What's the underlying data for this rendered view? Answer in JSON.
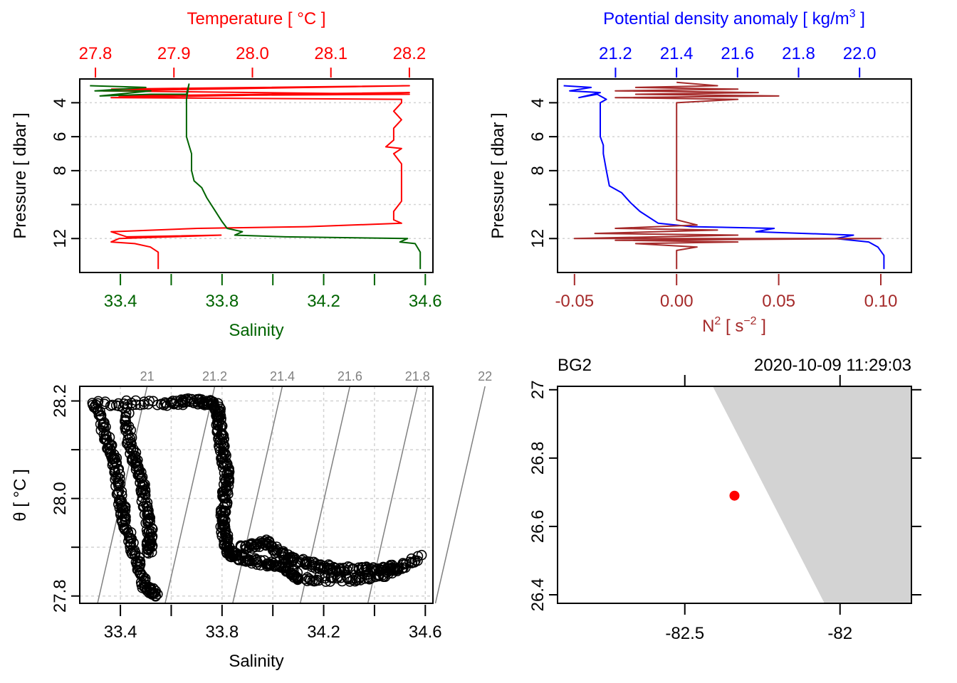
{
  "colors": {
    "temperature": "#ff0000",
    "salinity": "#006400",
    "density": "#0000ff",
    "n2": "#a52a2a",
    "grid": "#d3d3d3",
    "isopycnal": "#808080",
    "land": "#d3d3d3",
    "station": "#ff0000",
    "frame": "#000000"
  },
  "chart_data": [
    {
      "id": "temperature-salinity-profile",
      "type": "line",
      "title": "",
      "ylabel": "Pressure [ dbar ]",
      "ylim": [
        14.0,
        2.6
      ],
      "yticks": [
        4,
        6,
        8,
        10,
        12
      ],
      "ytick_labels": [
        "4",
        "6",
        "8",
        "",
        "12"
      ],
      "grid": "horizontal dotted",
      "axes": {
        "top": {
          "label": "Temperature [ °C ]",
          "ticks": [
            27.8,
            27.9,
            28.0,
            28.1,
            28.2
          ],
          "tick_labels": [
            "27.8",
            "27.9",
            "28.0",
            "28.1",
            "28.2"
          ],
          "lim": [
            27.78,
            28.23
          ]
        },
        "bottom": {
          "label": "Salinity",
          "ticks": [
            33.4,
            33.6,
            33.8,
            34.0,
            34.2,
            34.4,
            34.6
          ],
          "tick_labels": [
            "33.4",
            "",
            "33.8",
            "",
            "34.2",
            "",
            "34.6"
          ],
          "lim": [
            33.24,
            34.63
          ]
        }
      },
      "series": [
        {
          "name": "Temperature",
          "axis": "top",
          "points": [
            [
              27.82,
              3.2
            ],
            [
              28.2,
              3.0
            ],
            [
              27.81,
              3.3
            ],
            [
              28.2,
              3.5
            ],
            [
              27.83,
              3.6
            ],
            [
              28.2,
              3.4
            ],
            [
              27.82,
              3.7
            ],
            [
              28.19,
              3.8
            ],
            [
              28.19,
              4.0
            ],
            [
              28.18,
              4.5
            ],
            [
              28.19,
              5.0
            ],
            [
              28.18,
              5.5
            ],
            [
              28.18,
              6.2
            ],
            [
              28.17,
              6.6
            ],
            [
              28.19,
              6.7
            ],
            [
              28.18,
              7.0
            ],
            [
              28.19,
              7.6
            ],
            [
              28.19,
              8.5
            ],
            [
              28.19,
              9.2
            ],
            [
              28.19,
              9.8
            ],
            [
              28.18,
              10.4
            ],
            [
              28.18,
              10.9
            ],
            [
              28.19,
              11.1
            ],
            [
              28.07,
              11.3
            ],
            [
              27.93,
              11.4
            ],
            [
              27.82,
              11.6
            ],
            [
              27.84,
              11.9
            ],
            [
              27.96,
              11.8
            ],
            [
              27.83,
              12.0
            ],
            [
              27.82,
              12.2
            ],
            [
              27.85,
              12.3
            ],
            [
              27.87,
              12.5
            ],
            [
              27.88,
              12.8
            ],
            [
              27.88,
              13.2
            ],
            [
              27.88,
              13.6
            ],
            [
              27.88,
              13.8
            ]
          ]
        },
        {
          "name": "Salinity",
          "axis": "bottom",
          "points": [
            [
              33.28,
              3.0
            ],
            [
              33.5,
              3.1
            ],
            [
              33.3,
              3.3
            ],
            [
              33.52,
              3.3
            ],
            [
              33.32,
              3.6
            ],
            [
              33.52,
              3.5
            ],
            [
              33.66,
              3.5
            ],
            [
              33.67,
              2.9
            ],
            [
              33.66,
              3.8
            ],
            [
              33.66,
              4.0
            ],
            [
              33.66,
              5.0
            ],
            [
              33.66,
              6.0
            ],
            [
              33.67,
              6.5
            ],
            [
              33.68,
              7.0
            ],
            [
              33.68,
              8.0
            ],
            [
              33.69,
              8.6
            ],
            [
              33.72,
              9.0
            ],
            [
              33.74,
              9.6
            ],
            [
              33.77,
              10.3
            ],
            [
              33.8,
              11.0
            ],
            [
              33.82,
              11.4
            ],
            [
              33.88,
              11.6
            ],
            [
              33.85,
              11.8
            ],
            [
              34.05,
              11.9
            ],
            [
              34.53,
              12.0
            ],
            [
              34.5,
              12.2
            ],
            [
              34.56,
              12.3
            ],
            [
              34.58,
              12.8
            ],
            [
              34.58,
              13.5
            ],
            [
              34.58,
              13.8
            ]
          ]
        }
      ]
    },
    {
      "id": "density-n2-profile",
      "type": "line",
      "title": "",
      "ylabel": "Pressure [ dbar ]",
      "ylim": [
        14.0,
        2.6
      ],
      "yticks": [
        4,
        6,
        8,
        10,
        12
      ],
      "ytick_labels": [
        "4",
        "6",
        "8",
        "",
        "12"
      ],
      "grid": "horizontal dotted",
      "axes": {
        "top": {
          "label": "Potential density anomaly [ kg/m³ ]",
          "ticks": [
            21.2,
            21.4,
            21.6,
            21.8,
            22.0
          ],
          "tick_labels": [
            "21.2",
            "21.4",
            "21.6",
            "21.8",
            "22.0"
          ],
          "lim": [
            21.01,
            22.17
          ]
        },
        "bottom": {
          "label": "N² [ s⁻² ]",
          "ticks": [
            -0.05,
            0.0,
            0.05,
            0.1
          ],
          "tick_labels": [
            "-0.05",
            "0.00",
            "0.05",
            "0.10"
          ],
          "lim": [
            -0.0583,
            0.115
          ]
        }
      },
      "series": [
        {
          "name": "Potential density anomaly",
          "axis": "top",
          "points": [
            [
              21.03,
              3.0
            ],
            [
              21.12,
              3.1
            ],
            [
              21.05,
              3.3
            ],
            [
              21.15,
              3.4
            ],
            [
              21.08,
              3.7
            ],
            [
              21.14,
              3.5
            ],
            [
              21.17,
              3.8
            ],
            [
              21.15,
              4.0
            ],
            [
              21.15,
              5.0
            ],
            [
              21.15,
              6.0
            ],
            [
              21.16,
              6.5
            ],
            [
              21.16,
              7.0
            ],
            [
              21.17,
              8.0
            ],
            [
              21.18,
              8.9
            ],
            [
              21.22,
              9.3
            ],
            [
              21.25,
              9.9
            ],
            [
              21.28,
              10.4
            ],
            [
              21.34,
              11.1
            ],
            [
              21.45,
              11.3
            ],
            [
              21.72,
              11.4
            ],
            [
              21.66,
              11.6
            ],
            [
              21.98,
              11.8
            ],
            [
              21.92,
              12.0
            ],
            [
              22.03,
              12.2
            ],
            [
              22.06,
              12.5
            ],
            [
              22.08,
              13.0
            ],
            [
              22.08,
              13.8
            ]
          ]
        },
        {
          "name": "N2",
          "axis": "bottom",
          "points": [
            [
              0.0,
              2.8
            ],
            [
              0.02,
              3.0
            ],
            [
              -0.02,
              3.1
            ],
            [
              0.03,
              3.2
            ],
            [
              -0.03,
              3.3
            ],
            [
              0.04,
              3.4
            ],
            [
              -0.02,
              3.5
            ],
            [
              0.05,
              3.6
            ],
            [
              -0.03,
              3.7
            ],
            [
              0.03,
              3.8
            ],
            [
              0.0,
              4.0
            ],
            [
              0.0,
              5.0
            ],
            [
              0.0,
              6.0
            ],
            [
              0.0,
              7.0
            ],
            [
              0.0,
              8.0
            ],
            [
              0.0,
              9.0
            ],
            [
              0.0,
              10.0
            ],
            [
              0.0,
              10.9
            ],
            [
              0.01,
              11.2
            ],
            [
              -0.03,
              11.4
            ],
            [
              0.02,
              11.5
            ],
            [
              -0.04,
              11.7
            ],
            [
              0.03,
              11.8
            ],
            [
              -0.05,
              12.0
            ],
            [
              0.1,
              12.0
            ],
            [
              -0.03,
              12.1
            ],
            [
              0.03,
              12.2
            ],
            [
              -0.02,
              12.3
            ],
            [
              0.01,
              12.5
            ],
            [
              0.0,
              12.7
            ],
            [
              0.0,
              13.8
            ]
          ]
        }
      ]
    },
    {
      "id": "ts-diagram",
      "type": "scatter",
      "title": "",
      "xlabel": "Salinity",
      "ylabel": "θ [ °C ]",
      "xlim": [
        33.24,
        34.63
      ],
      "ylim": [
        27.785,
        28.23
      ],
      "xticks": [
        33.4,
        33.6,
        33.8,
        34.0,
        34.2,
        34.4,
        34.6
      ],
      "xtick_labels": [
        "33.4",
        "",
        "33.8",
        "",
        "34.2",
        "",
        "34.6"
      ],
      "yticks": [
        27.8,
        27.9,
        28.0,
        28.1,
        28.2
      ],
      "ytick_labels": [
        "27.8",
        "",
        "28.0",
        "",
        "28.2"
      ],
      "grid": "dotted both",
      "isopycnals": {
        "levels": [
          21.0,
          21.2,
          21.4,
          21.6,
          21.8,
          22.0
        ],
        "labels": [
          "21",
          "21.2",
          "21.4",
          "21.6",
          "21.8",
          "22"
        ]
      },
      "point_groups": [
        {
          "name": "surface-plateau",
          "path": [
            [
              33.29,
              28.195
            ],
            [
              33.58,
              28.195
            ],
            [
              33.7,
              28.2
            ],
            [
              33.78,
              28.195
            ]
          ]
        },
        {
          "name": "left-branch-outer",
          "path": [
            [
              33.3,
              28.19
            ],
            [
              33.35,
              28.12
            ],
            [
              33.38,
              28.07
            ],
            [
              33.4,
              28.0
            ],
            [
              33.42,
              27.95
            ],
            [
              33.46,
              27.88
            ],
            [
              33.5,
              27.82
            ],
            [
              33.54,
              27.8
            ]
          ]
        },
        {
          "name": "left-branch-inner",
          "path": [
            [
              33.42,
              28.19
            ],
            [
              33.44,
              28.1
            ],
            [
              33.48,
              28.05
            ],
            [
              33.5,
              27.98
            ],
            [
              33.52,
              27.92
            ],
            [
              33.51,
              27.89
            ]
          ]
        },
        {
          "name": "descent",
          "path": [
            [
              33.78,
              28.19
            ],
            [
              33.79,
              28.15
            ],
            [
              33.8,
              28.1
            ],
            [
              33.82,
              28.05
            ],
            [
              33.81,
              28.0
            ],
            [
              33.8,
              27.95
            ],
            [
              33.82,
              27.9
            ],
            [
              33.85,
              27.88
            ]
          ]
        },
        {
          "name": "bottom-lower",
          "path": [
            [
              33.85,
              27.88
            ],
            [
              33.95,
              27.87
            ],
            [
              34.05,
              27.86
            ],
            [
              34.1,
              27.835
            ],
            [
              34.3,
              27.835
            ],
            [
              34.45,
              27.845
            ],
            [
              34.58,
              27.88
            ]
          ]
        },
        {
          "name": "bottom-upper",
          "path": [
            [
              33.88,
              27.9
            ],
            [
              33.97,
              27.91
            ],
            [
              34.05,
              27.88
            ],
            [
              34.15,
              27.865
            ],
            [
              34.25,
              27.855
            ],
            [
              34.4,
              27.855
            ],
            [
              34.5,
              27.86
            ]
          ]
        }
      ]
    },
    {
      "id": "station-map",
      "type": "scatter",
      "title": "",
      "station_label": "BG2",
      "timestamp": "2020-10-09 11:29:03",
      "xlim": [
        -82.91,
        -81.77
      ],
      "ylim": [
        26.375,
        27.01
      ],
      "xticks": [
        -82.5,
        -82.0
      ],
      "xtick_labels": [
        "-82.5",
        "-82"
      ],
      "yticks": [
        26.4,
        26.6,
        26.8,
        27.0
      ],
      "ytick_labels": [
        "26.4",
        "26.6",
        "26.8",
        "27"
      ],
      "land_polygon": [
        [
          -82.41,
          27.01
        ],
        [
          -81.77,
          27.01
        ],
        [
          -81.77,
          26.375
        ],
        [
          -82.05,
          26.375
        ]
      ],
      "station": {
        "lon": -82.34,
        "lat": 26.69
      }
    }
  ]
}
